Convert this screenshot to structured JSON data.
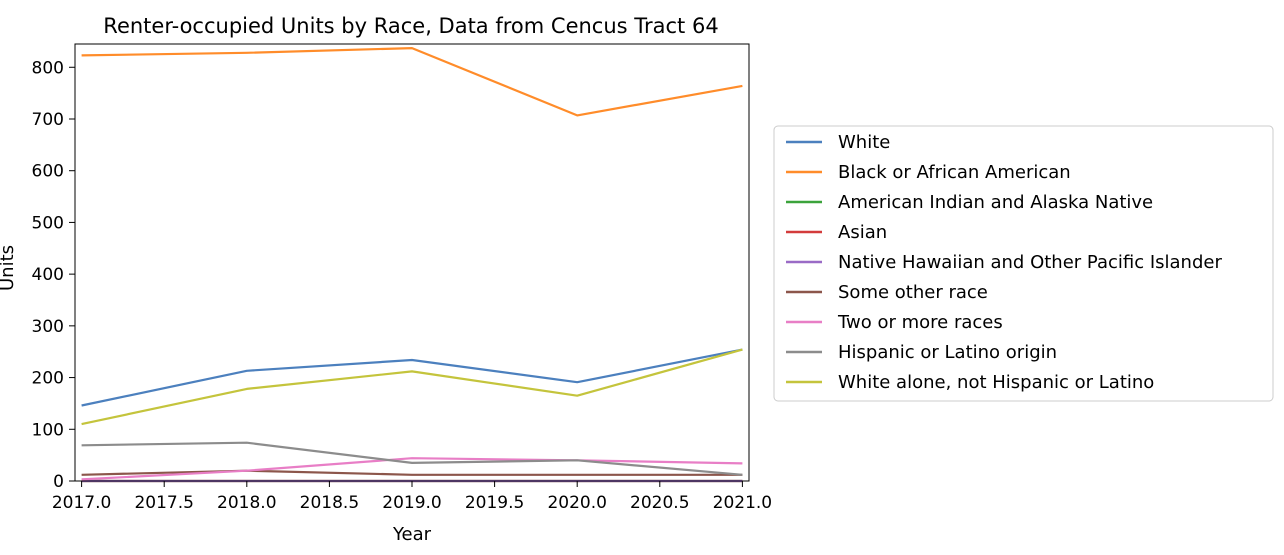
{
  "chart_data": {
    "type": "line",
    "title": "Renter-occupied Units by Race, Data from Cencus Tract 64",
    "xlabel": "Year",
    "ylabel": "Units",
    "xlim": [
      2016.96,
      2021.04
    ],
    "ylim": [
      0,
      845
    ],
    "xticks": [
      2017.0,
      2017.5,
      2018.0,
      2018.5,
      2019.0,
      2019.5,
      2020.0,
      2020.5,
      2021.0
    ],
    "xtick_labels": [
      "2017.0",
      "2017.5",
      "2018.0",
      "2018.5",
      "2019.0",
      "2019.5",
      "2020.0",
      "2020.5",
      "2021.0"
    ],
    "yticks": [
      0,
      100,
      200,
      300,
      400,
      500,
      600,
      700,
      800
    ],
    "ytick_labels": [
      "0",
      "100",
      "200",
      "300",
      "400",
      "500",
      "600",
      "700",
      "800"
    ],
    "x": [
      2017,
      2018,
      2019,
      2020,
      2021
    ],
    "grid": false,
    "legend_position": "outside right, center",
    "series": [
      {
        "name": "White",
        "color": "#4c80be",
        "values": [
          146,
          213,
          234,
          191,
          254
        ]
      },
      {
        "name": "Black or African American",
        "color": "#ff8c2a",
        "values": [
          823,
          828,
          837,
          707,
          764
        ]
      },
      {
        "name": "American Indian and Alaska Native",
        "color": "#3ba33b",
        "values": [
          0,
          0,
          0,
          0,
          0
        ]
      },
      {
        "name": "Asian",
        "color": "#d33b3b",
        "values": [
          0,
          0,
          0,
          0,
          0
        ]
      },
      {
        "name": "Native Hawaiian and Other Pacific Islander",
        "color": "#9a6bc6",
        "values": [
          0,
          0,
          0,
          0,
          0
        ]
      },
      {
        "name": "Some other race",
        "color": "#8c564b",
        "values": [
          12,
          20,
          12,
          12,
          12
        ]
      },
      {
        "name": "Two or more races",
        "color": "#e87ec6",
        "values": [
          3,
          20,
          44,
          40,
          34
        ]
      },
      {
        "name": "Hispanic or Latino origin",
        "color": "#8c8c8c",
        "values": [
          69,
          74,
          35,
          40,
          12
        ]
      },
      {
        "name": "White alone, not Hispanic or Latino",
        "color": "#c4c43c",
        "values": [
          110,
          178,
          212,
          165,
          254
        ]
      }
    ]
  }
}
